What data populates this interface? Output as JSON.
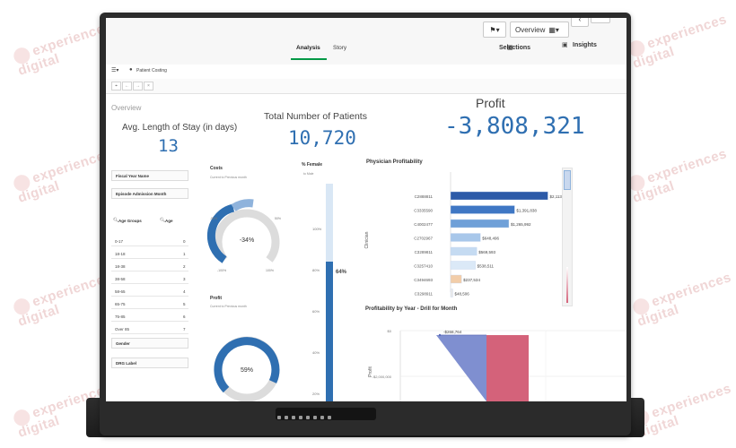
{
  "watermark": {
    "text_line1": "experiences",
    "text_line2": "digital"
  },
  "app": {
    "name": "Patient Costing"
  },
  "tabs": [
    {
      "label": "Analysis",
      "active": true
    },
    {
      "label": "Story",
      "active": false
    }
  ],
  "toolbar": {
    "overview_label": "Overview",
    "selections_label": "Selections",
    "insights_label": "Insights"
  },
  "sheet": {
    "title": "Overview"
  },
  "kpis": {
    "avg_stay": {
      "label": "Avg. Length of Stay (in days)",
      "value": "13"
    },
    "patients": {
      "label": "Total Number of Patients",
      "value": "10,720"
    },
    "profit": {
      "label": "Profit",
      "value": "-3,808,321"
    }
  },
  "filters": [
    {
      "label": "Fiscal Year Name"
    },
    {
      "label": "Episode Admission Month"
    }
  ],
  "age_list": {
    "header_group": "Age Groups",
    "header_age": "Age",
    "rows": [
      {
        "group": "0-17",
        "age": "0"
      },
      {
        "group": "18-18",
        "age": "1"
      },
      {
        "group": "18-38",
        "age": "2"
      },
      {
        "group": "38-58",
        "age": "3"
      },
      {
        "group": "58-65",
        "age": "4"
      },
      {
        "group": "65-75",
        "age": "5"
      },
      {
        "group": "75-85",
        "age": "6"
      },
      {
        "group": "Over 85",
        "age": "7"
      }
    ],
    "gender_label": "Gender",
    "drg_label": "DRG Label"
  },
  "costs_gauge": {
    "title": "Costs",
    "subtitle": "Current to Previous month",
    "value_label": "-34%",
    "tick_left": "-100%",
    "tick_right": "100%",
    "tick_mid_left": "-50%",
    "tick_mid_right": "50%"
  },
  "profit_gauge": {
    "title": "Profit",
    "subtitle": "Current to Previous month",
    "value_label": "59%"
  },
  "female_bar": {
    "title": "% Female",
    "subtitle": "to Male",
    "value_label": "64%",
    "fill": 0.64,
    "ticks": [
      "100%",
      "80%",
      "60%",
      "40%",
      "20%"
    ]
  },
  "physician_chart": {
    "title": "Physician Profitability",
    "axis_label": "Clinician"
  },
  "year_chart": {
    "title": "Profitability by Year - Drill for Month",
    "axis_label": "Profit",
    "tick_top": "$0",
    "tick_mid": "-$2,000,000",
    "annotation": "-$268,764"
  },
  "colors": {
    "accent_blue": "#2f6fb1",
    "bar_dark": "#2c5aa8",
    "bar_light": "#dbe9f7",
    "bar_peach": "#f2cda9",
    "green_tab": "#009845",
    "area_purple": "#7f8fd0",
    "area_pink": "#d4627a"
  },
  "chart_data": [
    {
      "type": "bar",
      "title": "Physician Profitability",
      "ylabel": "Clinician",
      "categories": [
        "C2888811",
        "C3335590",
        "C4002477",
        "C2702967",
        "C3289811",
        "C3257410",
        "C3494693",
        "C3298911"
      ],
      "values": [
        2113852,
        1391838,
        1265992,
        648496,
        569593,
        538511,
        237534,
        48506
      ],
      "data_labels": [
        "$2,113,852",
        "$1,391,838",
        "$1,265,992",
        "$648,496",
        "$569,593",
        "$538,511",
        "$237,534",
        "$48,506"
      ],
      "xlim": [
        0,
        2300000
      ]
    },
    {
      "type": "area",
      "title": "Profitability by Year - Drill for Month",
      "ylabel": "Profit",
      "annotation": "-$268,764"
    }
  ]
}
